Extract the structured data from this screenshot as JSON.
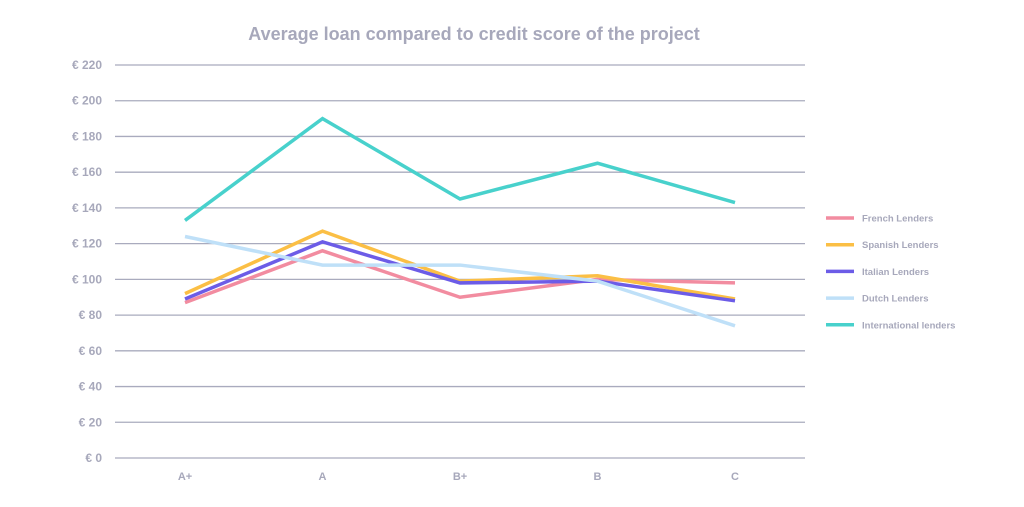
{
  "chart_data": {
    "type": "line",
    "title": "Average loan compared to credit score of the project",
    "xlabel": "",
    "ylabel": "",
    "categories": [
      "A+",
      "A",
      "B+",
      "B",
      "C"
    ],
    "ylim": [
      0,
      220
    ],
    "yticks": [
      220,
      200,
      180,
      160,
      140,
      120,
      100,
      80,
      60,
      40,
      20,
      0
    ],
    "ytick_labels": [
      "€ 220",
      "€ 200",
      "€ 180",
      "€ 160",
      "€ 140",
      "€ 120",
      "€ 100",
      "€ 80",
      "€ 60",
      "€ 40",
      "€ 20",
      "€ 0"
    ],
    "grid": true,
    "legend_position": "right",
    "series": [
      {
        "name": "French Lenders",
        "color": "#f28ca0",
        "values": [
          87,
          116,
          90,
          100,
          98
        ]
      },
      {
        "name": "Spanish Lenders",
        "color": "#fbbf45",
        "values": [
          92,
          127,
          99,
          102,
          89
        ]
      },
      {
        "name": "Italian Lenders",
        "color": "#6c5ce7",
        "values": [
          89,
          121,
          98,
          99,
          88
        ]
      },
      {
        "name": "Dutch Lenders",
        "color": "#bfe0f8",
        "values": [
          124,
          108,
          108,
          99,
          74
        ]
      },
      {
        "name": "International lenders",
        "color": "#48d1cc",
        "values": [
          133,
          190,
          145,
          165,
          143
        ]
      }
    ]
  }
}
